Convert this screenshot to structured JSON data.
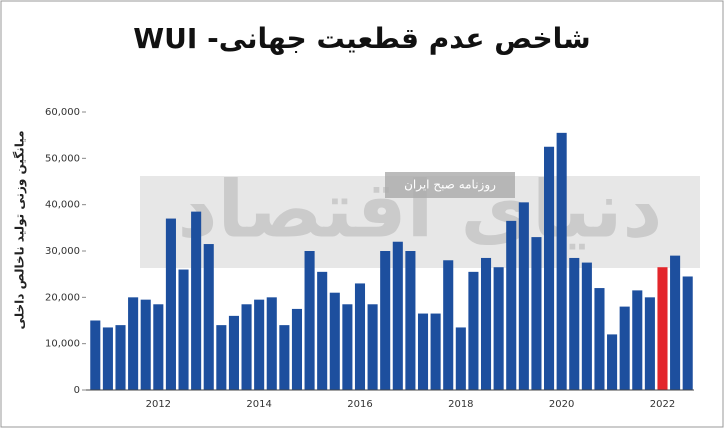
{
  "chart_data": {
    "type": "bar",
    "title": "شاخص عدم قطعیت جهانی- WUI",
    "y_label": "میانگین وزنی تولید ناخالص داخلی",
    "watermark": "دنیای اقتصاد",
    "watermark_subtitle": "روزنامه صبح ایران",
    "categories": [
      null,
      null,
      null,
      null,
      null,
      "2012",
      null,
      null,
      null,
      null,
      null,
      null,
      null,
      "2014",
      null,
      null,
      null,
      null,
      null,
      null,
      null,
      "2016",
      null,
      null,
      null,
      null,
      null,
      null,
      null,
      "2018",
      null,
      null,
      null,
      null,
      null,
      null,
      null,
      "2020",
      null,
      null,
      null,
      null,
      null,
      null,
      null,
      "2022",
      null,
      null
    ],
    "values": [
      15000,
      13500,
      14000,
      20000,
      19500,
      18500,
      37000,
      26000,
      38500,
      31500,
      14000,
      16000,
      18500,
      19500,
      20000,
      14000,
      17500,
      30000,
      25500,
      21000,
      18500,
      23000,
      18500,
      30000,
      32000,
      30000,
      16500,
      16500,
      28000,
      13500,
      25500,
      28500,
      26500,
      36500,
      40500,
      33000,
      52500,
      55500,
      28500,
      27500,
      22000,
      12000,
      18000,
      21500,
      20000,
      26500,
      29000,
      24500
    ],
    "colors": [
      "#1d4f9e",
      "#1d4f9e",
      "#1d4f9e",
      "#1d4f9e",
      "#1d4f9e",
      "#1d4f9e",
      "#1d4f9e",
      "#1d4f9e",
      "#1d4f9e",
      "#1d4f9e",
      "#1d4f9e",
      "#1d4f9e",
      "#1d4f9e",
      "#1d4f9e",
      "#1d4f9e",
      "#1d4f9e",
      "#1d4f9e",
      "#1d4f9e",
      "#1d4f9e",
      "#1d4f9e",
      "#1d4f9e",
      "#1d4f9e",
      "#1d4f9e",
      "#1d4f9e",
      "#1d4f9e",
      "#1d4f9e",
      "#1d4f9e",
      "#1d4f9e",
      "#1d4f9e",
      "#1d4f9e",
      "#1d4f9e",
      "#1d4f9e",
      "#1d4f9e",
      "#1d4f9e",
      "#1d4f9e",
      "#1d4f9e",
      "#1d4f9e",
      "#1d4f9e",
      "#1d4f9e",
      "#1d4f9e",
      "#1d4f9e",
      "#1d4f9e",
      "#1d4f9e",
      "#1d4f9e",
      "#1d4f9e",
      "#e3262b",
      "#1d4f9e",
      "#1d4f9e"
    ],
    "ylim": [
      0,
      60000
    ],
    "yticks": [
      0,
      {
        "value": 10000,
        "label": "10,000"
      },
      {
        "value": 20000,
        "label": "20,000"
      },
      {
        "value": 30000,
        "label": "30,000"
      },
      {
        "value": 40000,
        "label": "40,000"
      },
      {
        "value": 50000,
        "label": "50,000"
      },
      {
        "value": 60000,
        "label": "60,000"
      }
    ]
  }
}
